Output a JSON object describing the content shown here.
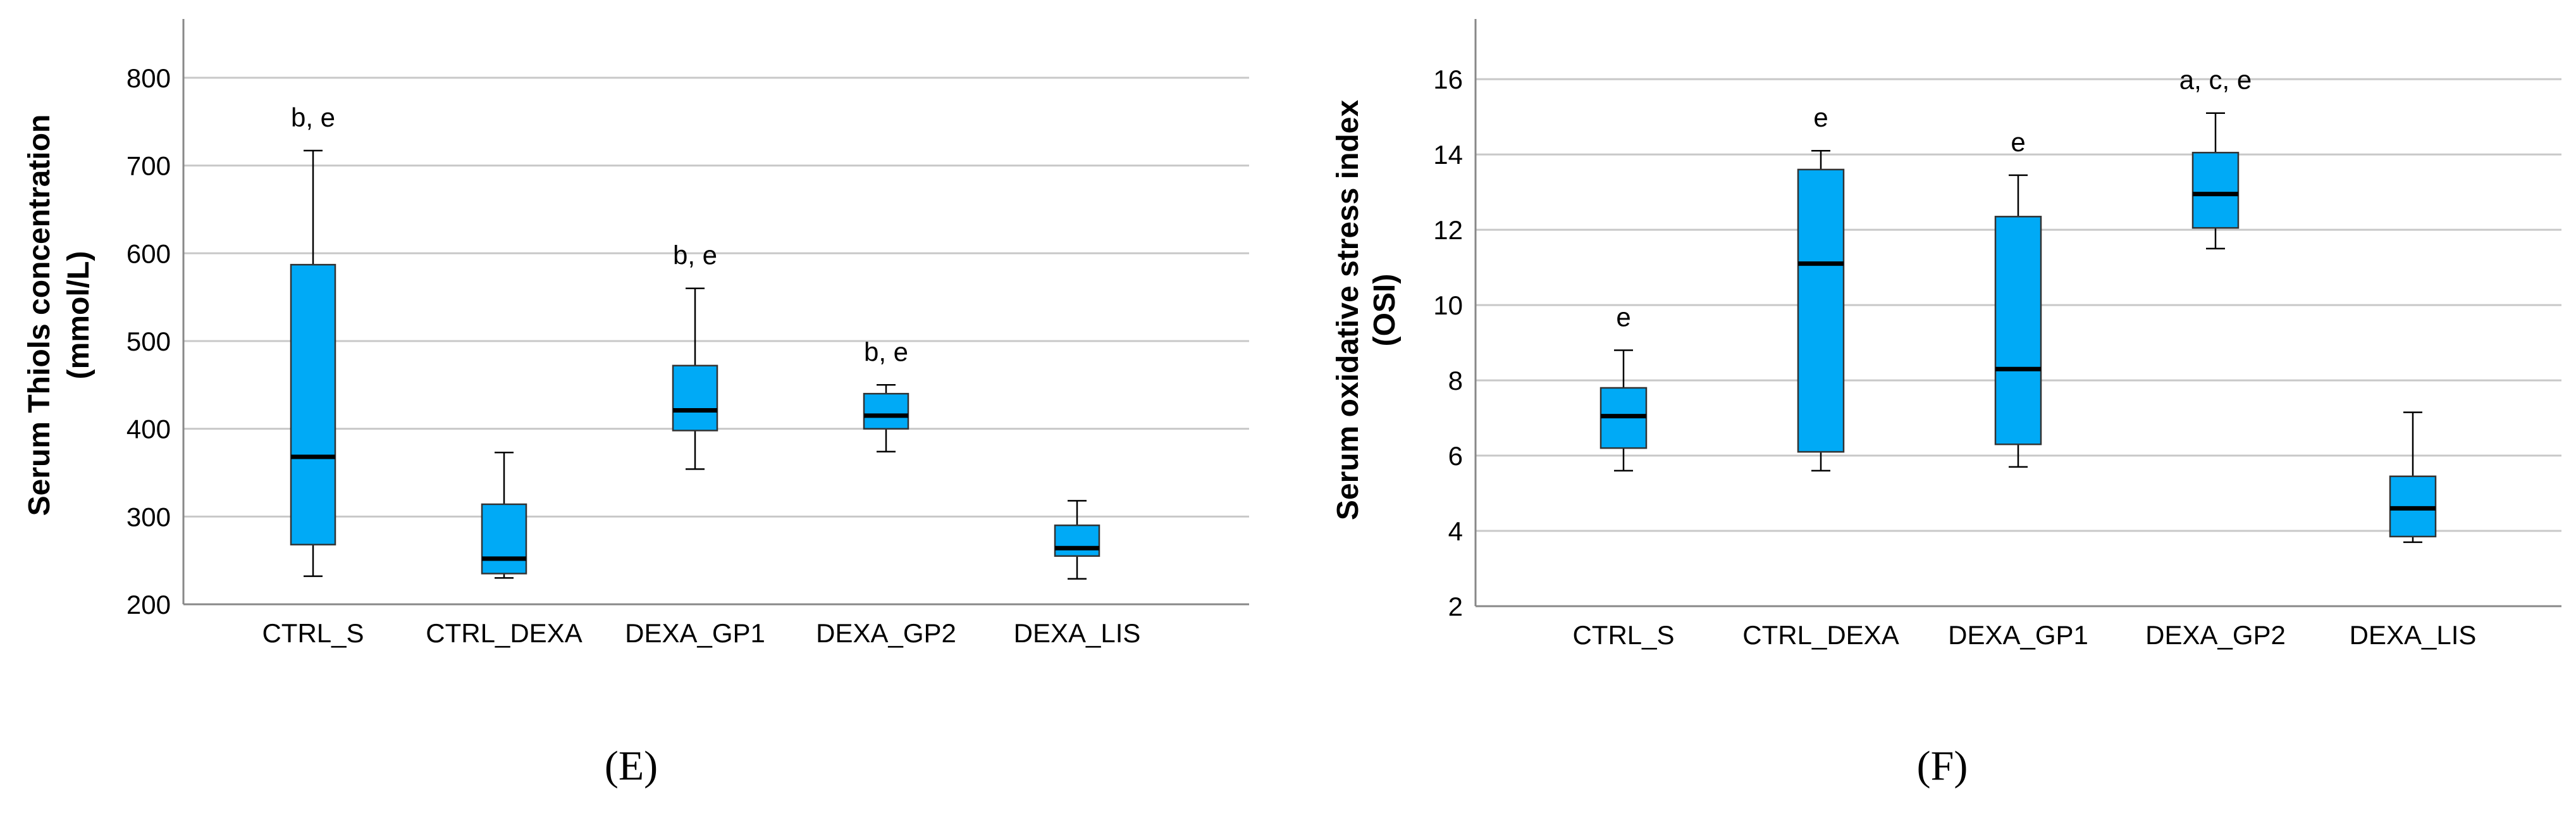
{
  "colors": {
    "box_fill": "#00aaf6",
    "grid": "#c8c8c8",
    "median": "#000000",
    "axis": "#888888"
  },
  "chart_data": [
    {
      "type": "box",
      "panel": "(E)",
      "ylabel_lines": [
        "Serum Thiols concentration",
        "(mmol/L)"
      ],
      "ylim": [
        200,
        867
      ],
      "yticks": [
        200,
        300,
        400,
        500,
        600,
        700,
        800
      ],
      "categories": [
        "CTRL_S",
        "CTRL_DEXA",
        "DEXA_GP1",
        "DEXA_GP2",
        "DEXA_LIS"
      ],
      "boxes": [
        {
          "min": 232,
          "q1": 268,
          "median": 368,
          "q3": 587,
          "max": 717,
          "annotation": "b, e"
        },
        {
          "min": 230,
          "q1": 235,
          "median": 252,
          "q3": 314,
          "max": 373,
          "annotation": ""
        },
        {
          "min": 354,
          "q1": 398,
          "median": 421,
          "q3": 472,
          "max": 560,
          "annotation": "b, e"
        },
        {
          "min": 374,
          "q1": 400,
          "median": 415,
          "q3": 440,
          "max": 450,
          "annotation": "b, e"
        },
        {
          "min": 229,
          "q1": 255,
          "median": 264,
          "q3": 290,
          "max": 318,
          "annotation": ""
        }
      ]
    },
    {
      "type": "box",
      "panel": "(F)",
      "ylabel_lines": [
        "Serum oxidative stress index",
        "(OSI)"
      ],
      "ylim": [
        2,
        17.6
      ],
      "yticks": [
        2,
        4,
        6,
        8,
        10,
        12,
        14,
        16
      ],
      "categories": [
        "CTRL_S",
        "CTRL_DEXA",
        "DEXA_GP1",
        "DEXA_GP2",
        "DEXA_LIS"
      ],
      "boxes": [
        {
          "min": 5.6,
          "q1": 6.2,
          "median": 7.05,
          "q3": 7.8,
          "max": 8.8,
          "annotation": "e"
        },
        {
          "min": 5.6,
          "q1": 6.1,
          "median": 11.1,
          "q3": 13.6,
          "max": 14.1,
          "annotation": "e"
        },
        {
          "min": 5.7,
          "q1": 6.3,
          "median": 8.3,
          "q3": 12.35,
          "max": 13.45,
          "annotation": "e"
        },
        {
          "min": 11.5,
          "q1": 12.05,
          "median": 12.95,
          "q3": 14.05,
          "max": 15.1,
          "annotation": "a, c, e"
        },
        {
          "min": 3.7,
          "q1": 3.85,
          "median": 4.6,
          "q3": 5.45,
          "max": 7.15,
          "annotation": ""
        }
      ]
    }
  ]
}
